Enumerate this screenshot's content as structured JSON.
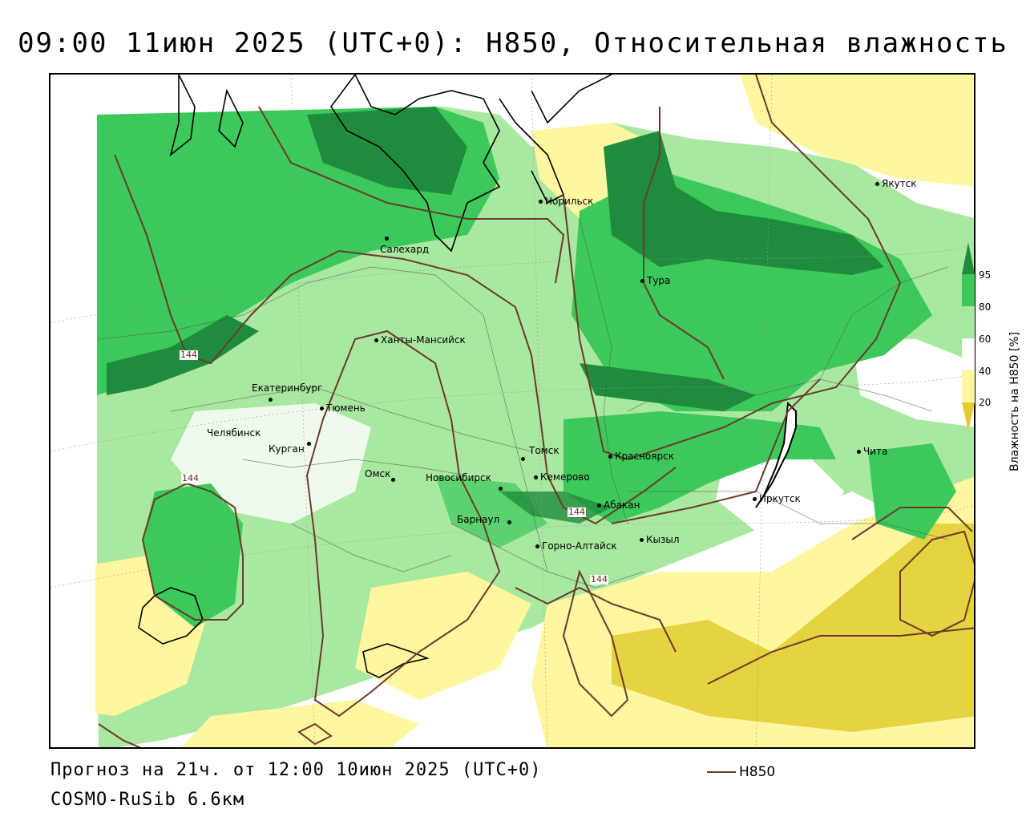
{
  "title": "09:00 11июн 2025 (UTC+0): H850, Относительная влажность",
  "footer": {
    "forecast": "Прогноз на 21ч. от 12:00 10июн 2025 (UTC+0)",
    "model": "COSMO-RuSib 6.6км"
  },
  "legend": {
    "line_label": "H850",
    "line_color": "#6b3a2a"
  },
  "colorbar": {
    "label": "Влажность на H850 [%]",
    "ticks": [
      "95",
      "80",
      "60",
      "40",
      "20"
    ],
    "colors": [
      "#1e8c3c",
      "#3cc85a",
      "#a8e8a0",
      "#ffffff",
      "#fff6a0",
      "#e0cc30"
    ]
  },
  "isoline_label": "144",
  "cities": [
    {
      "name": "Норильск"
    },
    {
      "name": "Якутск"
    },
    {
      "name": "Салехард"
    },
    {
      "name": "Тура"
    },
    {
      "name": "Ханты-Мансийск"
    },
    {
      "name": "Екатеринбург"
    },
    {
      "name": "Тюмень"
    },
    {
      "name": "Челябинск"
    },
    {
      "name": "Курган"
    },
    {
      "name": "Томск"
    },
    {
      "name": "Красноярск"
    },
    {
      "name": "Омск"
    },
    {
      "name": "Новосибирск"
    },
    {
      "name": "Кемерово"
    },
    {
      "name": "Абакан"
    },
    {
      "name": "Барнаул"
    },
    {
      "name": "Иркутск"
    },
    {
      "name": "Чита"
    },
    {
      "name": "Горно-Алтайск"
    },
    {
      "name": "Кызыл"
    }
  ]
}
